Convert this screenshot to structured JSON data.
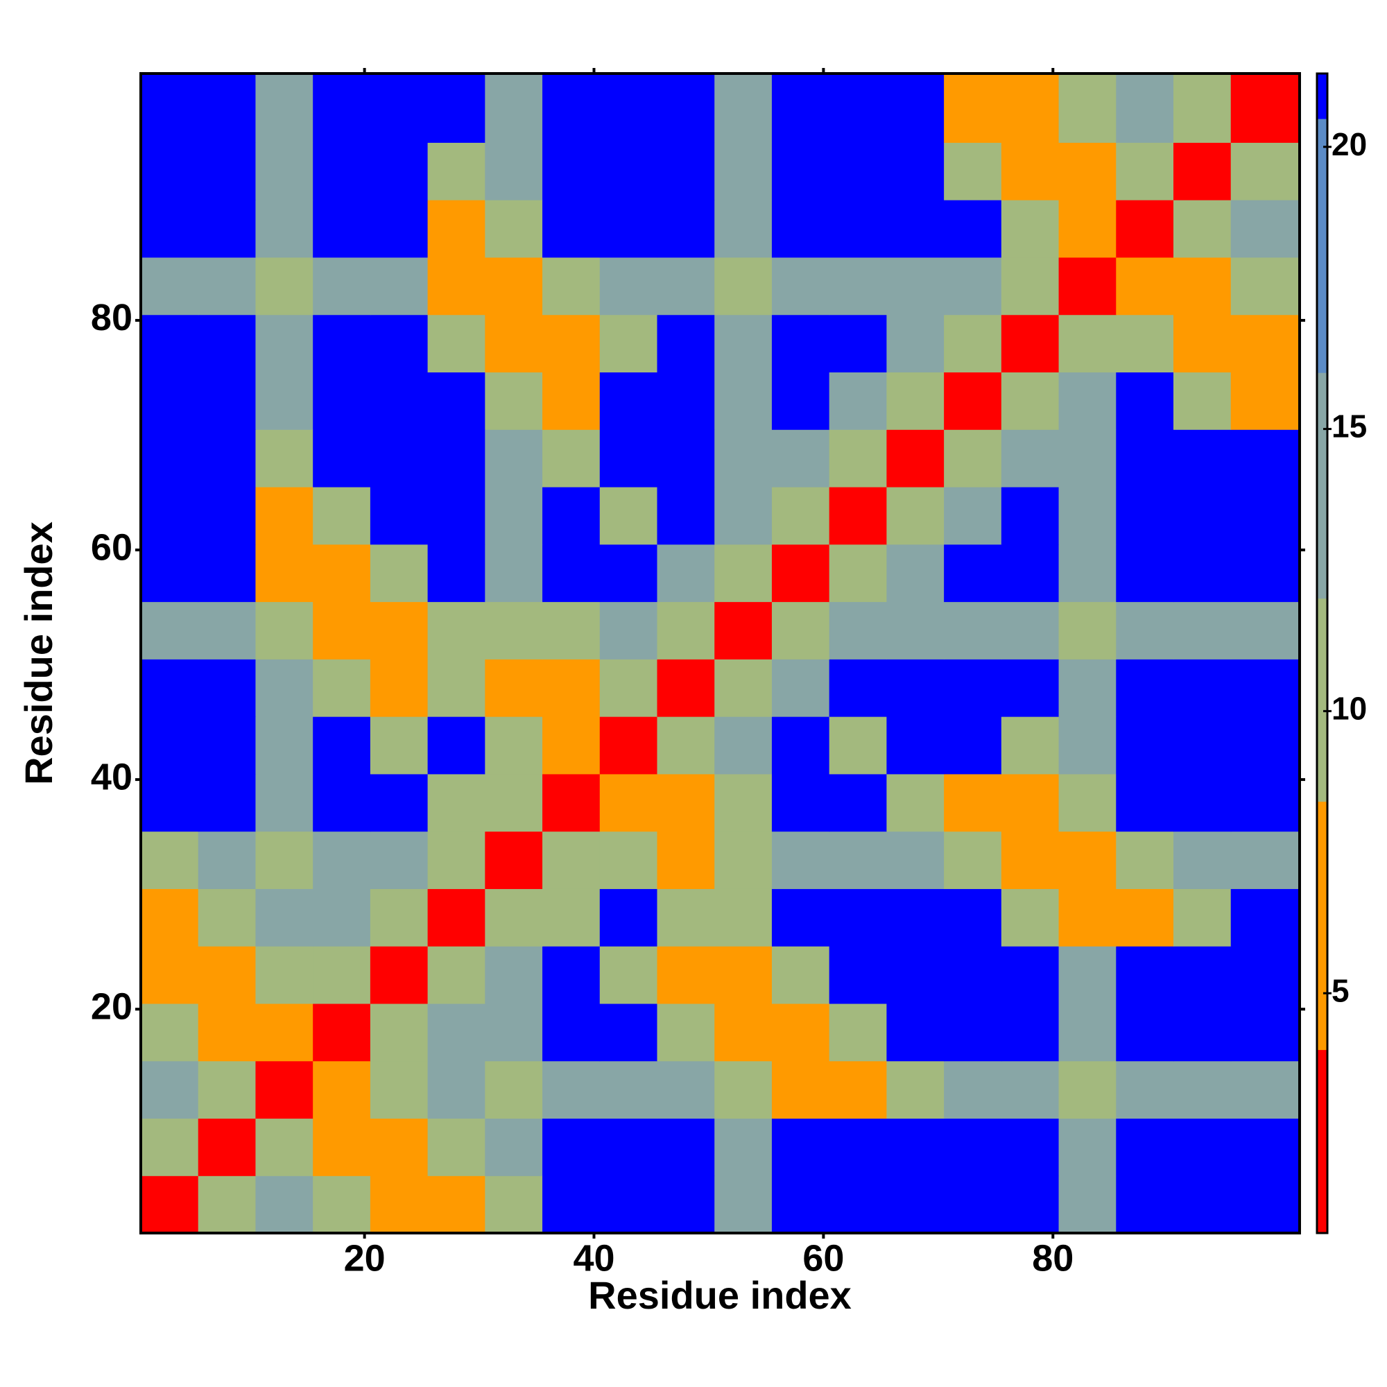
{
  "chart_data": {
    "type": "heatmap",
    "x_label": "Residue index",
    "y_label": "Residue index",
    "xbins": [
      0.5,
      5.5,
      10.5,
      15.5,
      20.5,
      25.5,
      30.5,
      35.5,
      40.5,
      45.5,
      50.5,
      55.5,
      60.5,
      65.5,
      70.5,
      75.5,
      80.5,
      85.5,
      90.5,
      95.5,
      101.5
    ],
    "ybins": [
      0.5,
      5.5,
      10.5,
      15.5,
      20.5,
      25.5,
      30.5,
      35.5,
      40.5,
      45.5,
      50.5,
      55.5,
      60.5,
      65.5,
      70.5,
      75.5,
      80.5,
      85.5,
      90.5,
      95.5,
      101.5
    ],
    "xlim": [
      0.5,
      101.5
    ],
    "ylim": [
      0.5,
      101.5
    ],
    "xticks": [
      20,
      40,
      60,
      80
    ],
    "yticks": [
      20,
      40,
      60,
      80
    ],
    "zlim": [
      0.75,
      21.3
    ],
    "zticks": [
      5,
      10,
      15,
      20
    ],
    "colorscale": [
      {
        "from": 0.75,
        "color": "#ff0000"
      },
      {
        "from": 4,
        "color": "#ff9a00"
      },
      {
        "from": 8.4,
        "color": "#a3b97e"
      },
      {
        "from": 12,
        "color": "#88a6a6"
      },
      {
        "from": 16,
        "color": "#5b8bc6"
      },
      {
        "from": 20.5,
        "color": "#0000ff"
      }
    ],
    "z": [
      [
        3,
        9,
        14,
        11,
        7,
        7,
        11,
        21,
        21,
        21,
        15,
        21,
        21,
        21,
        21,
        21,
        15,
        21,
        21,
        21
      ],
      [
        9,
        3,
        9,
        7,
        7,
        11,
        15,
        21,
        21,
        21,
        15,
        21,
        21,
        21,
        21,
        21,
        15,
        21,
        21,
        21
      ],
      [
        14,
        9,
        3,
        7,
        11,
        15,
        11,
        15,
        15,
        15,
        11,
        7,
        7,
        11,
        15,
        15,
        11,
        15,
        15,
        15
      ],
      [
        11,
        7,
        7,
        3,
        9,
        14,
        15,
        21,
        21,
        11,
        7,
        7,
        11,
        21,
        21,
        21,
        15,
        21,
        21,
        21
      ],
      [
        7,
        7,
        11,
        9,
        3,
        9,
        14,
        21,
        11,
        7,
        7,
        11,
        21,
        21,
        21,
        21,
        15,
        21,
        21,
        21
      ],
      [
        7,
        11,
        15,
        14,
        9,
        3,
        9,
        11,
        21,
        11,
        11,
        21,
        21,
        21,
        21,
        11,
        7,
        7,
        11,
        21
      ],
      [
        11,
        15,
        11,
        15,
        14,
        9,
        3,
        9,
        11,
        7,
        11,
        15,
        15,
        15,
        11,
        7,
        7,
        11,
        15,
        15
      ],
      [
        21,
        21,
        15,
        21,
        21,
        11,
        9,
        3,
        7,
        7,
        11,
        21,
        21,
        11,
        7,
        7,
        11,
        21,
        21,
        21
      ],
      [
        21,
        21,
        15,
        21,
        11,
        21,
        11,
        7,
        3,
        9,
        14,
        21,
        11,
        21,
        21,
        11,
        15,
        21,
        21,
        21
      ],
      [
        21,
        21,
        15,
        11,
        7,
        11,
        7,
        7,
        9,
        3,
        9,
        14,
        21,
        21,
        21,
        21,
        15,
        21,
        21,
        21
      ],
      [
        15,
        15,
        11,
        7,
        7,
        11,
        11,
        11,
        14,
        9,
        3,
        9,
        14,
        15,
        15,
        15,
        11,
        15,
        15,
        15
      ],
      [
        21,
        21,
        7,
        7,
        11,
        21,
        15,
        21,
        21,
        14,
        9,
        3,
        9,
        14,
        21,
        21,
        15,
        21,
        21,
        21
      ],
      [
        21,
        21,
        7,
        11,
        21,
        21,
        15,
        21,
        11,
        21,
        14,
        9,
        3,
        9,
        14,
        21,
        15,
        21,
        21,
        21
      ],
      [
        21,
        21,
        11,
        21,
        21,
        21,
        15,
        11,
        21,
        21,
        15,
        14,
        9,
        3,
        9,
        14,
        15,
        21,
        21,
        21
      ],
      [
        21,
        21,
        15,
        21,
        21,
        21,
        11,
        7,
        21,
        21,
        15,
        21,
        14,
        9,
        3,
        9,
        14,
        21,
        11,
        7
      ],
      [
        21,
        21,
        15,
        21,
        21,
        11,
        7,
        7,
        11,
        21,
        15,
        21,
        21,
        14,
        9,
        3,
        9,
        11,
        7,
        7
      ],
      [
        15,
        15,
        11,
        15,
        15,
        7,
        7,
        11,
        15,
        15,
        11,
        15,
        15,
        15,
        14,
        9,
        3,
        7,
        7,
        11
      ],
      [
        21,
        21,
        15,
        21,
        21,
        7,
        11,
        21,
        21,
        21,
        15,
        21,
        21,
        21,
        21,
        11,
        7,
        3,
        9,
        14
      ],
      [
        21,
        21,
        15,
        21,
        21,
        11,
        15,
        21,
        21,
        21,
        15,
        21,
        21,
        21,
        11,
        7,
        7,
        9,
        3,
        9
      ],
      [
        21,
        21,
        15,
        21,
        21,
        21,
        15,
        21,
        21,
        21,
        15,
        21,
        21,
        21,
        7,
        7,
        11,
        14,
        9,
        3
      ]
    ]
  }
}
